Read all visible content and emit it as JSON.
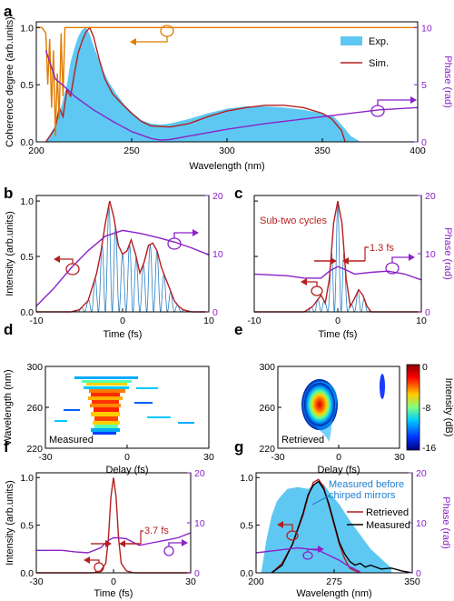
{
  "colors": {
    "fill": "#5ec8f2",
    "red": "#b51f1f",
    "purple": "#8b22c9",
    "orange": "#e07b00",
    "black": "#000000"
  },
  "panel_letters": [
    "a",
    "b",
    "c",
    "d",
    "e",
    "f",
    "g"
  ],
  "chart_data": [
    {
      "panel": "a",
      "type": "area",
      "xlabel": "Wavelength (nm)",
      "ylabel": "Coherence degree (arb.units)",
      "y2label": "Phase (rad)",
      "xlim": [
        200,
        400
      ],
      "ylim": [
        0,
        1.05
      ],
      "y2lim": [
        0,
        10.5
      ],
      "xticks": [
        200,
        250,
        300,
        350,
        400
      ],
      "yticks": [
        0,
        0.5,
        1.0
      ],
      "yticklabels": [
        "0.0",
        "0.5",
        "1.0"
      ],
      "y2ticks": [
        0,
        5,
        10
      ],
      "legend": [
        "Exp.",
        "Sim."
      ],
      "series": [
        {
          "name": "Exp.",
          "kind": "fill",
          "axis": "left",
          "color": "#5ec8f2",
          "x": [
            205,
            210,
            213,
            216,
            218,
            220,
            222,
            224,
            226,
            228,
            230,
            234,
            238,
            242,
            246,
            250,
            255,
            260,
            265,
            270,
            280,
            290,
            300,
            310,
            320,
            330,
            340,
            350,
            356,
            360,
            365,
            370
          ],
          "y": [
            0.0,
            0.15,
            0.3,
            0.5,
            0.7,
            0.82,
            0.92,
            0.98,
            1.0,
            0.94,
            0.84,
            0.66,
            0.52,
            0.42,
            0.33,
            0.26,
            0.19,
            0.16,
            0.15,
            0.16,
            0.2,
            0.25,
            0.29,
            0.31,
            0.31,
            0.3,
            0.28,
            0.25,
            0.22,
            0.15,
            0.05,
            0.0
          ]
        },
        {
          "name": "Sim.",
          "kind": "line",
          "axis": "left",
          "color": "#b51f1f",
          "x": [
            205,
            210,
            212,
            214,
            216,
            218,
            220,
            222,
            224,
            226,
            228,
            230,
            233,
            236,
            240,
            245,
            250,
            255,
            260,
            270,
            280,
            290,
            300,
            310,
            320,
            330,
            340,
            350,
            355,
            360,
            362
          ],
          "y": [
            0.0,
            0.12,
            0.3,
            0.22,
            0.45,
            0.4,
            0.6,
            0.78,
            0.88,
            0.96,
            1.0,
            0.92,
            0.72,
            0.55,
            0.42,
            0.33,
            0.25,
            0.18,
            0.14,
            0.13,
            0.16,
            0.22,
            0.27,
            0.3,
            0.32,
            0.32,
            0.3,
            0.25,
            0.2,
            0.1,
            0.0
          ]
        },
        {
          "name": "",
          "kind": "line",
          "axis": "left",
          "color": "#e07b00",
          "x": [
            200,
            203,
            205,
            206,
            207,
            208,
            209,
            210,
            211,
            212,
            213,
            214,
            215,
            216,
            400
          ],
          "y": [
            1.0,
            1.0,
            0.95,
            0.5,
            0.9,
            0.3,
            0.8,
            0.05,
            0.6,
            0.2,
            0.95,
            0.4,
            1.0,
            1.0,
            1.0
          ]
        },
        {
          "name": "",
          "kind": "line",
          "axis": "right",
          "color": "#8b22c9",
          "x": [
            205,
            210,
            215,
            220,
            225,
            230,
            240,
            250,
            260,
            265,
            270,
            280,
            290,
            300,
            320,
            340,
            360,
            380,
            400
          ],
          "y": [
            8.0,
            5.5,
            4.8,
            4.0,
            3.4,
            2.8,
            1.8,
            0.9,
            0.3,
            0.15,
            0.2,
            0.5,
            0.8,
            1.1,
            1.6,
            2.0,
            2.4,
            2.8,
            3.0
          ]
        }
      ]
    },
    {
      "panel": "b",
      "type": "line",
      "xlabel": "Time (fs)",
      "ylabel": "Intensity (arb.units)",
      "xlim": [
        -10,
        10
      ],
      "ylim": [
        0,
        1.05
      ],
      "y2lim": [
        0,
        20
      ],
      "xticks": [
        -10,
        0,
        10
      ],
      "yticks": [
        0,
        0.5,
        1.0
      ],
      "yticklabels": [
        "0.0",
        "0.5",
        "1.0"
      ],
      "y2ticks": [
        0,
        10,
        20
      ],
      "series": [
        {
          "name": "",
          "kind": "envelope",
          "color": "#b51f1f",
          "x": [
            -10,
            -6,
            -5,
            -4,
            -3,
            -2.5,
            -2,
            -1.5,
            -1,
            -0.5,
            0,
            0.5,
            1,
            1.5,
            2,
            2.5,
            3,
            3.5,
            4,
            4.5,
            5,
            5.5,
            6,
            6.5,
            7,
            8,
            10
          ],
          "y": [
            0.0,
            0.0,
            0.02,
            0.1,
            0.35,
            0.55,
            0.8,
            1.0,
            0.85,
            0.6,
            0.52,
            0.55,
            0.65,
            0.52,
            0.35,
            0.45,
            0.6,
            0.62,
            0.55,
            0.4,
            0.3,
            0.2,
            0.1,
            0.05,
            0.02,
            0.0,
            0.0
          ]
        },
        {
          "name": "",
          "kind": "line",
          "axis": "right",
          "color": "#8b22c9",
          "x": [
            -10,
            -8,
            -6,
            -4,
            -2,
            0,
            2,
            4,
            6,
            8,
            10
          ],
          "y": [
            1.0,
            4.0,
            7.5,
            10.5,
            13.0,
            14.0,
            13.5,
            12.8,
            12.0,
            11.0,
            9.8
          ]
        }
      ]
    },
    {
      "panel": "c",
      "type": "line",
      "xlabel": "Time (fs)",
      "y2label": "Phase (rad)",
      "xlim": [
        -10,
        10
      ],
      "ylim": [
        0,
        1.05
      ],
      "y2lim": [
        0,
        20
      ],
      "xticks": [
        -10,
        0,
        10
      ],
      "y2ticks": [
        0,
        10,
        20
      ],
      "annotations": [
        "Sub-two cycles",
        "1.3 fs"
      ],
      "series": [
        {
          "name": "",
          "kind": "envelope",
          "color": "#b51f1f",
          "x": [
            -10,
            -4,
            -3,
            -2,
            -1.5,
            -1,
            -0.5,
            0,
            0.5,
            1,
            1.5,
            2,
            2.5,
            3,
            3.5,
            4,
            10
          ],
          "y": [
            0.0,
            0.0,
            0.05,
            0.15,
            0.08,
            0.3,
            0.8,
            1.0,
            0.8,
            0.3,
            0.05,
            0.12,
            0.2,
            0.15,
            0.05,
            0.0,
            0.0
          ]
        },
        {
          "name": "",
          "kind": "line",
          "axis": "right",
          "color": "#8b22c9",
          "x": [
            -10,
            -6,
            -4,
            -2,
            -1,
            0,
            1,
            2,
            4,
            6,
            8,
            10
          ],
          "y": [
            6.5,
            6.2,
            5.8,
            5.8,
            7.0,
            7.8,
            7.2,
            6.5,
            6.8,
            7.0,
            6.5,
            5.5
          ]
        }
      ]
    },
    {
      "panel": "d",
      "type": "heatmap",
      "label": "Measured",
      "xlabel": "Delay (fs)",
      "ylabel": "Wavelength (nm)",
      "xlim": [
        -30,
        30
      ],
      "ylim": [
        220,
        300
      ],
      "xticks": [
        -30,
        0,
        30
      ],
      "yticks": [
        220,
        260,
        300
      ]
    },
    {
      "panel": "e",
      "type": "heatmap",
      "label": "Retrieved",
      "xlabel": "Delay (fs)",
      "ylabel": "Wavelength (nm)",
      "xlim": [
        -30,
        30
      ],
      "ylim": [
        220,
        300
      ],
      "xticks": [
        -30,
        0,
        30
      ],
      "yticks": [
        220,
        260,
        300
      ],
      "colorbar_label": "Intensity (dB)",
      "colorbar_ticks": [
        "0",
        "-8",
        "-16"
      ]
    },
    {
      "panel": "f",
      "type": "line",
      "xlabel": "Time (fs)",
      "ylabel": "Intensity (arb.units)",
      "xlim": [
        -30,
        30
      ],
      "ylim": [
        0,
        1.05
      ],
      "y2lim": [
        0,
        20
      ],
      "xticks": [
        -30,
        0,
        30
      ],
      "yticks": [
        0,
        0.5,
        1.0
      ],
      "yticklabels": [
        "0.0",
        "0.5",
        "1.0"
      ],
      "y2ticks": [
        0,
        10,
        20
      ],
      "annotations": [
        "3.7 fs"
      ],
      "series": [
        {
          "name": "",
          "kind": "line",
          "color": "#b51f1f",
          "x": [
            -30,
            -8,
            -5,
            -3,
            -2,
            -1,
            0,
            1,
            2,
            3,
            5,
            8,
            30
          ],
          "y": [
            0.0,
            0.0,
            0.02,
            0.1,
            0.35,
            0.8,
            1.0,
            0.8,
            0.35,
            0.1,
            0.02,
            0.0,
            0.0
          ]
        },
        {
          "name": "",
          "kind": "line",
          "axis": "right",
          "color": "#8b22c9",
          "x": [
            -30,
            -20,
            -15,
            -10,
            -5,
            -2,
            0,
            2,
            5,
            10,
            15,
            20,
            25,
            30
          ],
          "y": [
            4.5,
            4.5,
            4.2,
            4.0,
            5.0,
            6.5,
            7.0,
            7.0,
            6.8,
            5.5,
            6.0,
            6.5,
            7.0,
            8.0
          ]
        }
      ]
    },
    {
      "panel": "g",
      "type": "area",
      "xlabel": "Wavelength (nm)",
      "y2label": "Phase (rad)",
      "xlim": [
        200,
        350
      ],
      "ylim": [
        0,
        1.05
      ],
      "y2lim": [
        0,
        20
      ],
      "xticks": [
        200,
        275,
        350
      ],
      "yticks": [
        0,
        0.5,
        1.0
      ],
      "yticklabels": [
        "0.0",
        "0.5",
        "1.0"
      ],
      "y2ticks": [
        0,
        10,
        20
      ],
      "legend": [
        "Retrieved",
        "Measured"
      ],
      "annotations": [
        "Measured before",
        "chirped mirrors"
      ],
      "series": [
        {
          "name": "Measured before chirped mirrors",
          "kind": "fill",
          "color": "#5ec8f2",
          "x": [
            205,
            210,
            215,
            220,
            225,
            230,
            240,
            250,
            255,
            260,
            265,
            270,
            280,
            290,
            300,
            310,
            320,
            330
          ],
          "y": [
            0.0,
            0.35,
            0.6,
            0.75,
            0.82,
            0.88,
            0.9,
            0.88,
            0.92,
            0.95,
            0.93,
            0.85,
            0.72,
            0.55,
            0.4,
            0.25,
            0.15,
            0.05
          ]
        },
        {
          "name": "Retrieved",
          "kind": "line",
          "color": "#b51f1f",
          "x": [
            215,
            225,
            235,
            245,
            250,
            255,
            260,
            265,
            270,
            275,
            280,
            285,
            290,
            295,
            300
          ],
          "y": [
            0.0,
            0.1,
            0.3,
            0.6,
            0.8,
            0.95,
            0.98,
            0.9,
            0.7,
            0.5,
            0.3,
            0.15,
            0.05,
            0.02,
            0.0
          ]
        },
        {
          "name": "Measured",
          "kind": "line",
          "color": "#000000",
          "x": [
            215,
            225,
            235,
            245,
            250,
            255,
            260,
            265,
            270,
            275,
            280,
            285,
            290,
            295,
            300,
            305,
            310,
            320,
            330,
            340,
            350
          ],
          "y": [
            0.0,
            0.08,
            0.3,
            0.62,
            0.82,
            0.92,
            0.96,
            0.88,
            0.72,
            0.52,
            0.32,
            0.2,
            0.12,
            0.08,
            0.1,
            0.06,
            0.08,
            0.04,
            0.05,
            0.02,
            0.0
          ]
        },
        {
          "name": "",
          "kind": "line",
          "axis": "right",
          "color": "#8b22c9",
          "x": [
            200,
            220,
            240,
            260,
            270,
            280,
            290,
            300
          ],
          "y": [
            4.0,
            4.5,
            5.0,
            4.5,
            3.5,
            2.5,
            1.2,
            0.2
          ]
        }
      ]
    }
  ]
}
